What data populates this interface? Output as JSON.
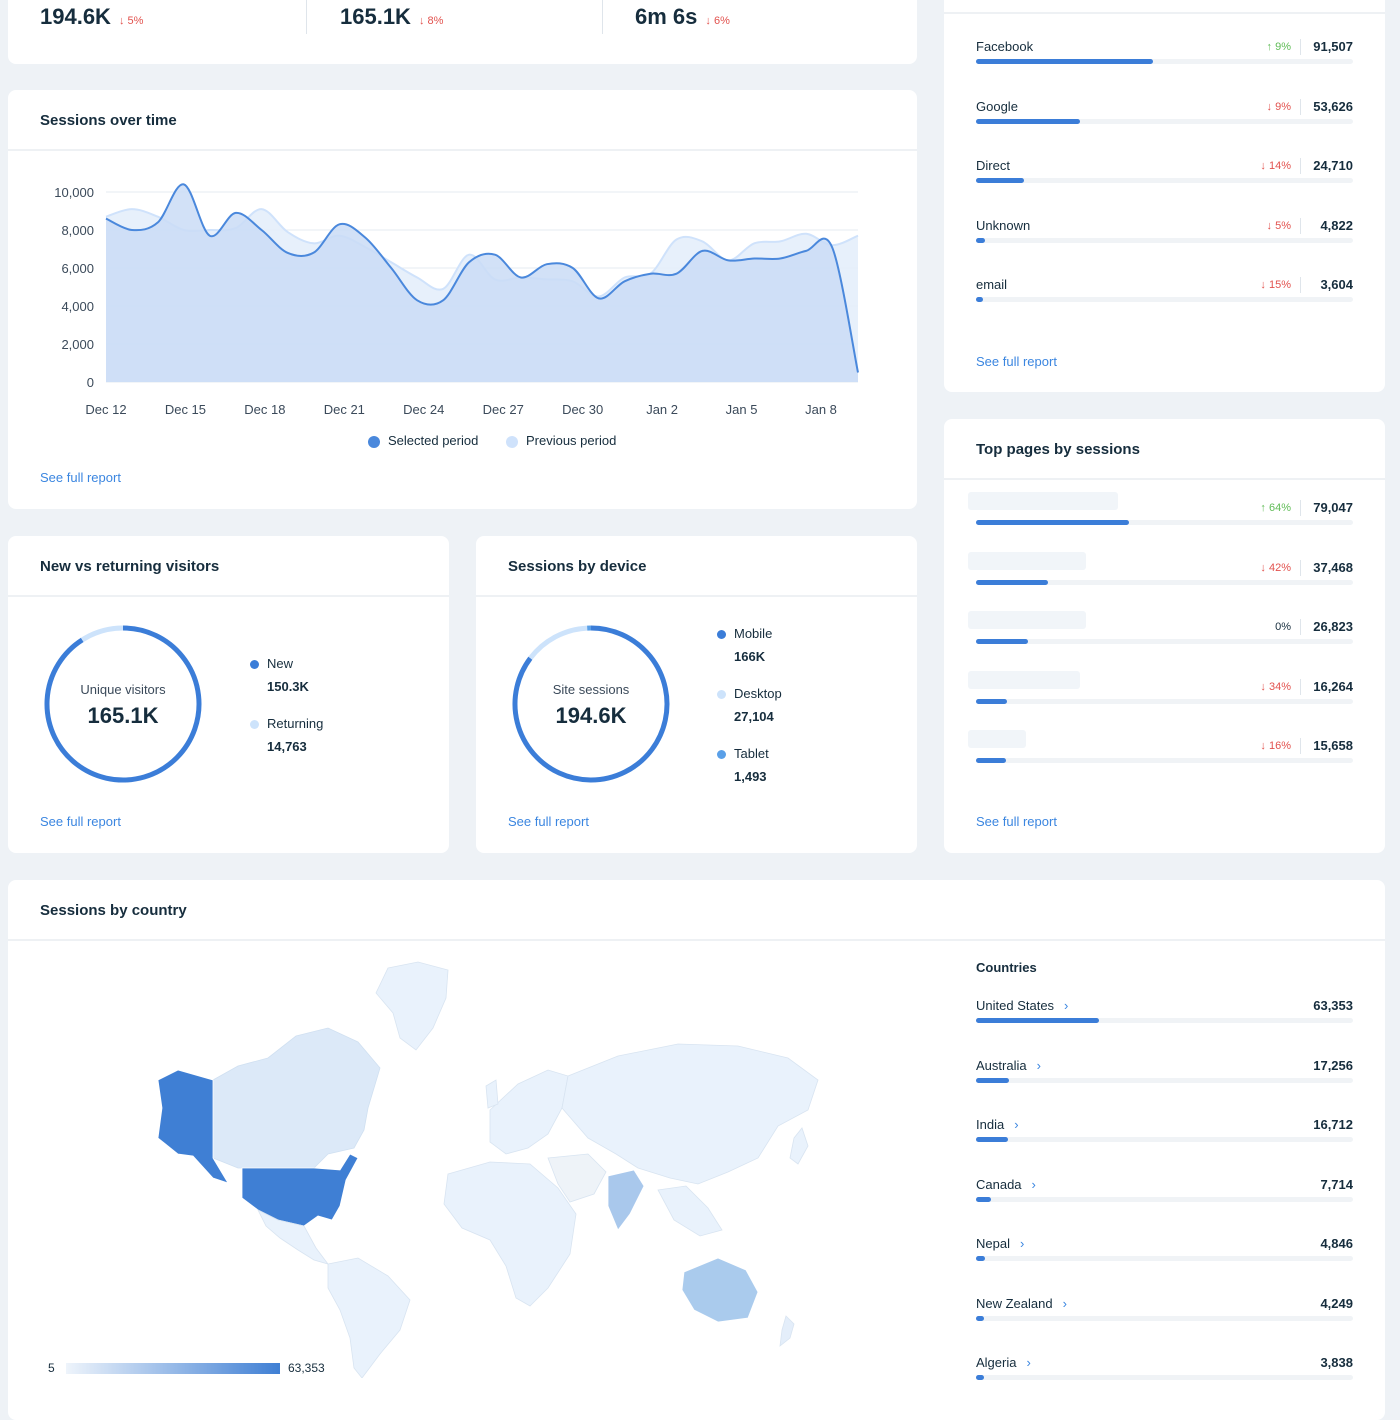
{
  "kpis": [
    {
      "value": "194.6K",
      "change": "5%"
    },
    {
      "value": "165.1K",
      "change": "8%"
    },
    {
      "value": "6m 6s",
      "change": "6%"
    }
  ],
  "sources": {
    "items": [
      {
        "label": "Facebook",
        "change": "9%",
        "dir": "up",
        "value": "91,507",
        "share": 0.47
      },
      {
        "label": "Google",
        "change": "9%",
        "dir": "down",
        "value": "53,626",
        "share": 0.275
      },
      {
        "label": "Direct",
        "change": "14%",
        "dir": "down",
        "value": "24,710",
        "share": 0.127
      },
      {
        "label": "Unknown",
        "change": "5%",
        "dir": "down",
        "value": "4,822",
        "share": 0.025
      },
      {
        "label": "email",
        "change": "15%",
        "dir": "down",
        "value": "3,604",
        "share": 0.018
      }
    ],
    "link": "See full report"
  },
  "sessions_over_time": {
    "title": "Sessions over time",
    "link": "See full report",
    "legend": {
      "selected": "Selected period",
      "previous": "Previous period"
    },
    "colors": {
      "selected": "#4a88dc",
      "previous": "#cfe2fb"
    }
  },
  "chart_data": {
    "type": "area",
    "title": "Sessions over time",
    "categories": [
      "Dec 12",
      "Dec 15",
      "Dec 18",
      "Dec 21",
      "Dec 24",
      "Dec 27",
      "Dec 30",
      "Jan 2",
      "Jan 5",
      "Jan 8"
    ],
    "y_ticks": [
      "10,000",
      "8,000",
      "6,000",
      "4,000",
      "2,000",
      "0"
    ],
    "ylim": [
      0,
      10000
    ],
    "series": [
      {
        "name": "Selected period",
        "x": [
          0,
          1,
          2,
          3,
          4,
          5,
          6,
          7,
          8,
          9,
          10,
          11,
          12,
          13,
          14,
          15,
          16,
          17,
          18,
          19,
          20,
          21,
          22,
          23,
          24,
          25,
          26,
          27,
          28,
          29
        ],
        "values": [
          8600,
          8000,
          8400,
          10400,
          7700,
          8900,
          8000,
          6800,
          6800,
          8300,
          7600,
          6000,
          4300,
          4300,
          6300,
          6700,
          5500,
          6200,
          6000,
          4400,
          5300,
          5700,
          5700,
          6900,
          6400,
          6500,
          6500,
          6900,
          7100,
          500
        ]
      },
      {
        "name": "Previous period",
        "x": [
          0,
          1,
          2,
          3,
          4,
          5,
          6,
          7,
          8,
          9,
          10,
          11,
          12,
          13,
          14,
          15,
          16,
          17,
          18,
          19,
          20,
          21,
          22,
          23,
          24,
          25,
          26,
          27,
          28,
          29
        ],
        "values": [
          8700,
          9100,
          8700,
          8000,
          8000,
          8100,
          9100,
          7900,
          7300,
          7700,
          7100,
          6300,
          5500,
          4900,
          6700,
          5400,
          5500,
          5400,
          5300,
          4500,
          5500,
          5700,
          7500,
          7400,
          6400,
          7300,
          7400,
          7800,
          7200,
          7700
        ]
      }
    ]
  },
  "new_vs_returning": {
    "title": "New vs returning visitors",
    "center_label": "Unique visitors",
    "center_value": "165.1K",
    "items": [
      {
        "label": "New",
        "value": "150.3K",
        "color": "#3b7dd8",
        "fraction": 0.91
      },
      {
        "label": "Returning",
        "value": "14,763",
        "color": "#cde3fb",
        "fraction": 0.09
      }
    ],
    "link": "See full report"
  },
  "device": {
    "title": "Sessions by device",
    "center_label": "Site sessions",
    "center_value": "194.6K",
    "items": [
      {
        "label": "Mobile",
        "value": "166K",
        "color": "#3b7dd8",
        "fraction": 0.853
      },
      {
        "label": "Desktop",
        "value": "27,104",
        "color": "#cde3fb",
        "fraction": 0.139
      },
      {
        "label": "Tablet",
        "value": "1,493",
        "color": "#5aa0e8",
        "fraction": 0.008
      }
    ],
    "link": "See full report"
  },
  "top_pages": {
    "title": "Top pages by sessions",
    "items": [
      {
        "change": "64%",
        "dir": "up",
        "value": "79,047",
        "share": 0.405
      },
      {
        "change": "42%",
        "dir": "down",
        "value": "37,468",
        "share": 0.19
      },
      {
        "change": "0%",
        "dir": "flat",
        "value": "26,823",
        "share": 0.137
      },
      {
        "change": "34%",
        "dir": "down",
        "value": "16,264",
        "share": 0.083
      },
      {
        "change": "16%",
        "dir": "down",
        "value": "15,658",
        "share": 0.08
      }
    ],
    "link": "See full report"
  },
  "country": {
    "title": "Sessions by country",
    "list_header": "Countries",
    "scale_min": "5",
    "scale_max": "63,353",
    "items": [
      {
        "label": "United States",
        "value": "63,353",
        "share": 0.325
      },
      {
        "label": "Australia",
        "value": "17,256",
        "share": 0.088
      },
      {
        "label": "India",
        "value": "16,712",
        "share": 0.085
      },
      {
        "label": "Canada",
        "value": "7,714",
        "share": 0.04
      },
      {
        "label": "Nepal",
        "value": "4,846",
        "share": 0.025
      },
      {
        "label": "New Zealand",
        "value": "4,249",
        "share": 0.022
      },
      {
        "label": "Algeria",
        "value": "3,838",
        "share": 0.02
      }
    ]
  }
}
